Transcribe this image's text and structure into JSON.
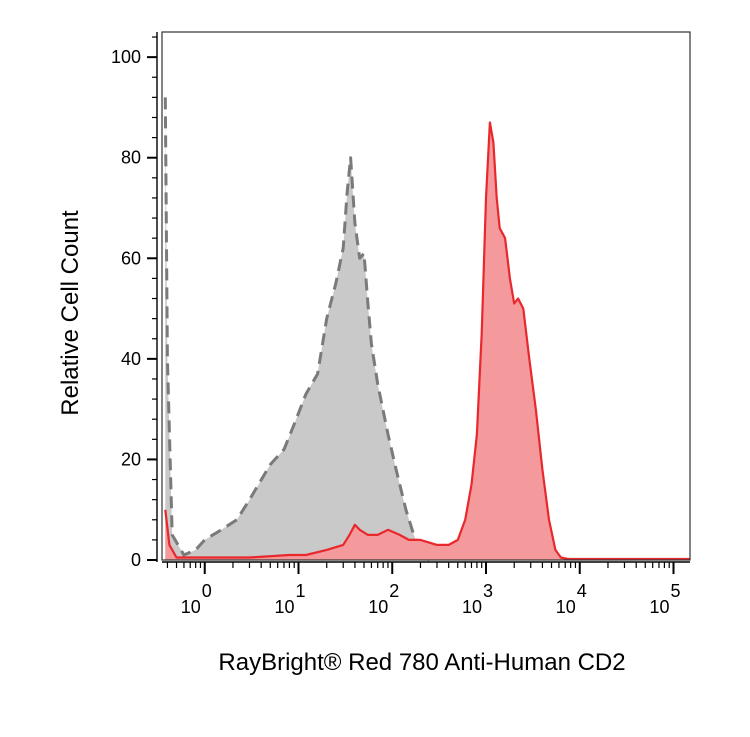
{
  "chart_data": {
    "type": "area",
    "title": "",
    "xlabel": "RayBright® Red 780 Anti-Human CD2",
    "ylabel": "Relative Cell Count",
    "x_scale": "log",
    "xlim": [
      0.35,
      150000
    ],
    "ylim": [
      0,
      105
    ],
    "y_ticks": [
      0,
      20,
      40,
      60,
      80,
      100
    ],
    "x_tick_labels": [
      {
        "base": "10",
        "exp": "0"
      },
      {
        "base": "10",
        "exp": "1"
      },
      {
        "base": "10",
        "exp": "2"
      },
      {
        "base": "10",
        "exp": "3"
      },
      {
        "base": "10",
        "exp": "4"
      },
      {
        "base": "10",
        "exp": "5"
      }
    ],
    "grid": false,
    "legend": "none",
    "series": [
      {
        "style": "dashed-gray-filled",
        "color": "#7a7a7a",
        "fill": "#c9c9c9",
        "x": [
          0.38,
          0.4,
          0.45,
          0.6,
          0.8,
          1,
          1.5,
          2.2,
          3,
          5,
          7,
          9,
          12,
          16,
          20,
          25,
          30,
          33,
          36,
          40,
          45,
          50,
          55,
          60,
          70,
          90,
          110,
          140,
          170,
          200,
          230,
          250
        ],
        "y": [
          92,
          40,
          5,
          1,
          2,
          4,
          6,
          8,
          12,
          19,
          22,
          27,
          33,
          37,
          48,
          55,
          62,
          73,
          80,
          67,
          60,
          61,
          51,
          43,
          35,
          25,
          18,
          10,
          5,
          2,
          0.5,
          0
        ]
      },
      {
        "style": "solid-red-filled",
        "color": "#e8282c",
        "fill": "#f59a9c",
        "x": [
          0.38,
          0.42,
          0.5,
          1,
          3,
          8,
          12,
          20,
          30,
          35,
          40,
          45,
          55,
          70,
          90,
          120,
          150,
          200,
          300,
          400,
          500,
          600,
          700,
          800,
          900,
          1000,
          1100,
          1200,
          1300,
          1400,
          1600,
          1800,
          2000,
          2200,
          2500,
          2900,
          3400,
          4000,
          4700,
          5500,
          6300,
          7500,
          10000,
          30000,
          150000
        ],
        "y": [
          10,
          3,
          0.5,
          0.5,
          0.5,
          1,
          1,
          2,
          3,
          5,
          7,
          6,
          5,
          5,
          6,
          5,
          4,
          4,
          3,
          3,
          4,
          8,
          15,
          25,
          45,
          72,
          87,
          83,
          72,
          66,
          64,
          56,
          51,
          52,
          50,
          40,
          30,
          18,
          8,
          2,
          0.5,
          0.2,
          0.2,
          0.2,
          0.2
        ]
      }
    ]
  }
}
